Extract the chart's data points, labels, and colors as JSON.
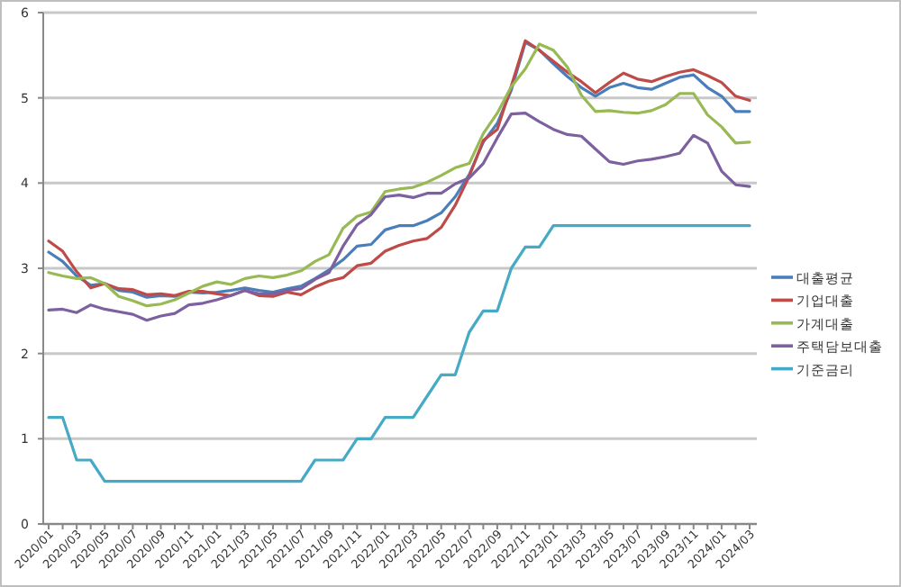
{
  "chart_data": {
    "type": "line",
    "categories": [
      "2020/01",
      null,
      "2020/03",
      null,
      "2020/05",
      null,
      "2020/07",
      null,
      "2020/09",
      null,
      "2020/11",
      null,
      "2021/01",
      null,
      "2021/03",
      null,
      "2021/05",
      null,
      "2021/07",
      null,
      "2021/09",
      null,
      "2021/11",
      null,
      "2022/01",
      null,
      "2022/03",
      null,
      "2022/05",
      null,
      "2022/07",
      null,
      "2022/09",
      null,
      "2022/11",
      null,
      "2023/01",
      null,
      "2023/03",
      null,
      "2023/05",
      null,
      "2023/07",
      null,
      "2023/09",
      null,
      "2023/11",
      null,
      "2024/01",
      null,
      "2024/03"
    ],
    "series": [
      {
        "name": "대출평균",
        "color": "#4a7ebb",
        "values": [
          3.19,
          3.08,
          2.91,
          2.8,
          2.82,
          2.74,
          2.72,
          2.66,
          2.68,
          2.67,
          2.72,
          2.71,
          2.72,
          2.74,
          2.77,
          2.74,
          2.72,
          2.76,
          2.79,
          2.88,
          2.98,
          3.1,
          3.26,
          3.28,
          3.45,
          3.5,
          3.5,
          3.56,
          3.65,
          3.84,
          4.1,
          4.48,
          4.7,
          5.09,
          5.65,
          5.56,
          5.4,
          5.25,
          5.12,
          5.02,
          5.12,
          5.17,
          5.12,
          5.1,
          5.17,
          5.24,
          5.27,
          5.12,
          5.02,
          4.84,
          4.84
        ]
      },
      {
        "name": "기업대출",
        "color": "#be4b48",
        "values": [
          3.32,
          3.2,
          2.96,
          2.77,
          2.82,
          2.76,
          2.75,
          2.69,
          2.7,
          2.68,
          2.73,
          2.73,
          2.7,
          2.68,
          2.74,
          2.68,
          2.67,
          2.72,
          2.69,
          2.78,
          2.85,
          2.89,
          3.03,
          3.06,
          3.2,
          3.27,
          3.32,
          3.35,
          3.48,
          3.74,
          4.08,
          4.5,
          4.63,
          5.14,
          5.67,
          5.56,
          5.43,
          5.3,
          5.19,
          5.06,
          5.18,
          5.29,
          5.22,
          5.19,
          5.25,
          5.3,
          5.33,
          5.26,
          5.18,
          5.02,
          4.97
        ]
      },
      {
        "name": "가계대출",
        "color": "#98b954",
        "values": [
          2.95,
          2.91,
          2.88,
          2.89,
          2.82,
          2.67,
          2.62,
          2.56,
          2.58,
          2.63,
          2.71,
          2.79,
          2.84,
          2.81,
          2.88,
          2.91,
          2.89,
          2.92,
          2.97,
          3.08,
          3.16,
          3.47,
          3.61,
          3.66,
          3.9,
          3.93,
          3.95,
          4.01,
          4.09,
          4.18,
          4.23,
          4.58,
          4.82,
          5.13,
          5.34,
          5.63,
          5.56,
          5.36,
          5.03,
          4.84,
          4.85,
          4.83,
          4.82,
          4.85,
          4.92,
          5.05,
          5.05,
          4.8,
          4.66,
          4.47,
          4.48
        ]
      },
      {
        "name": "주택담보대출",
        "color": "#7d60a0",
        "values": [
          2.51,
          2.52,
          2.48,
          2.57,
          2.52,
          2.49,
          2.46,
          2.39,
          2.44,
          2.47,
          2.57,
          2.59,
          2.63,
          2.68,
          2.74,
          2.7,
          2.7,
          2.74,
          2.76,
          2.87,
          2.95,
          3.26,
          3.51,
          3.63,
          3.84,
          3.86,
          3.83,
          3.88,
          3.88,
          3.99,
          4.06,
          4.23,
          4.53,
          4.81,
          4.82,
          4.72,
          4.63,
          4.57,
          4.55,
          4.4,
          4.25,
          4.22,
          4.26,
          4.28,
          4.31,
          4.35,
          4.56,
          4.47,
          4.14,
          3.98,
          3.96
        ]
      },
      {
        "name": "기준금리",
        "color": "#46aac5",
        "values": [
          1.25,
          1.25,
          0.75,
          0.75,
          0.5,
          0.5,
          0.5,
          0.5,
          0.5,
          0.5,
          0.5,
          0.5,
          0.5,
          0.5,
          0.5,
          0.5,
          0.5,
          0.5,
          0.5,
          0.75,
          0.75,
          0.75,
          1.0,
          1.0,
          1.25,
          1.25,
          1.25,
          1.5,
          1.75,
          1.75,
          2.25,
          2.5,
          2.5,
          3.0,
          3.25,
          3.25,
          3.5,
          3.5,
          3.5,
          3.5,
          3.5,
          3.5,
          3.5,
          3.5,
          3.5,
          3.5,
          3.5,
          3.5,
          3.5,
          3.5,
          3.5
        ]
      }
    ],
    "ylim": [
      0,
      6
    ],
    "yticks": [
      0,
      1,
      2,
      3,
      4,
      5,
      6
    ],
    "grid": "y",
    "legend": "right",
    "marker": "none",
    "line_style": "solid"
  }
}
